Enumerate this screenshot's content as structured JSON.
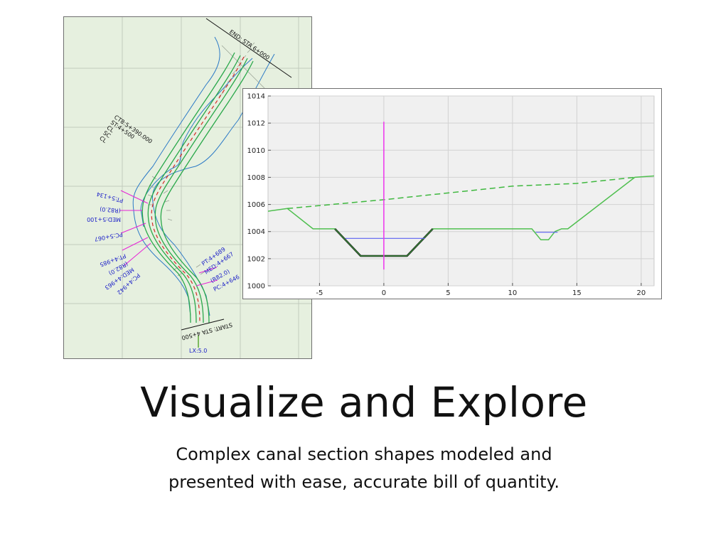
{
  "headline": "Visualize and Explore",
  "subtitle": "Complex canal section shapes modeled and presented with ease, accurate bill of quantity.",
  "plan_view": {
    "labels": {
      "end": "END: STA 6+000",
      "start": "START: STA 4+500",
      "lx": "LX:5.0",
      "pt_5134": "PT:5+134",
      "r820_a": "(R82.0)",
      "med_5100": "MED:5+100",
      "pc_5067": "PC:5+067",
      "pt_4985": "PT:4+985",
      "r820_b": "(R82.0)",
      "med_4963": "MED:4+963",
      "pc_4942": "PC:4+942",
      "pt_4689": "PT:4+689",
      "med_4667": "MED:4+667",
      "r820_c": "(R82.0)",
      "pc_4646": "PC:4+646",
      "curve_group": [
        "CT8:5+390.000",
        "ST:4+500",
        "CL",
        "SC",
        "CL"
      ]
    },
    "colors": {
      "background": "#e6f0df",
      "grid": "#c2cbbd",
      "boundary": "#2b79c6",
      "channel": "#29a84a",
      "centerline": "#d62828",
      "callout": "#e624d6"
    }
  },
  "chart_data": {
    "type": "line",
    "title": "",
    "xlabel": "",
    "ylabel": "",
    "xlim": [
      -9,
      21
    ],
    "ylim": [
      1000,
      1014
    ],
    "xticks": [
      -5,
      0,
      5,
      10,
      15,
      20
    ],
    "yticks": [
      1000,
      1002,
      1004,
      1006,
      1008,
      1010,
      1012,
      1014
    ],
    "grid": true,
    "series": [
      {
        "color": "#4fbf4f",
        "style": "solid",
        "width": 1.5,
        "x": [
          -9,
          -7.5,
          -5.5,
          -3.8,
          -1.8,
          1.8,
          3.8,
          11.5,
          12.2,
          12.8,
          13.3,
          13.8,
          14.3,
          19.5,
          21
        ],
        "y": [
          1005.5,
          1005.7,
          1004.2,
          1004.2,
          1002.2,
          1002.2,
          1004.2,
          1004.2,
          1003.4,
          1003.4,
          1004.0,
          1004.2,
          1004.2,
          1008.0,
          1008.1
        ]
      },
      {
        "color": "#3fb83f",
        "style": "dashed",
        "width": 1.5,
        "x": [
          -7.5,
          0,
          5,
          10,
          15,
          19.5
        ],
        "y": [
          1005.7,
          1006.35,
          1006.85,
          1007.35,
          1007.55,
          1008.0
        ]
      },
      {
        "color": "#111111",
        "style": "solid",
        "width": 2.6,
        "x": [
          -3.8,
          -1.8,
          1.8,
          3.8
        ],
        "y": [
          1004.2,
          1002.2,
          1002.2,
          1004.2
        ]
      },
      {
        "color": "#3d9a3d",
        "style": "solid",
        "width": 1.2,
        "x": [
          -3.8,
          -1.8,
          1.8,
          3.8
        ],
        "y": [
          1004.2,
          1002.2,
          1002.2,
          1004.2
        ]
      },
      {
        "color": "#5b63f2",
        "style": "solid",
        "width": 1.2,
        "x": [
          -3,
          3.2
        ],
        "y": [
          1003.5,
          1003.5
        ]
      },
      {
        "color": "#5b63f2",
        "style": "solid",
        "width": 1.2,
        "x": [
          11.8,
          13.5
        ],
        "y": [
          1003.95,
          1003.95
        ]
      },
      {
        "color": "#ee33ee",
        "style": "solid",
        "width": 1.5,
        "x": [
          0,
          0
        ],
        "y": [
          1001.2,
          1012.1
        ]
      }
    ]
  }
}
